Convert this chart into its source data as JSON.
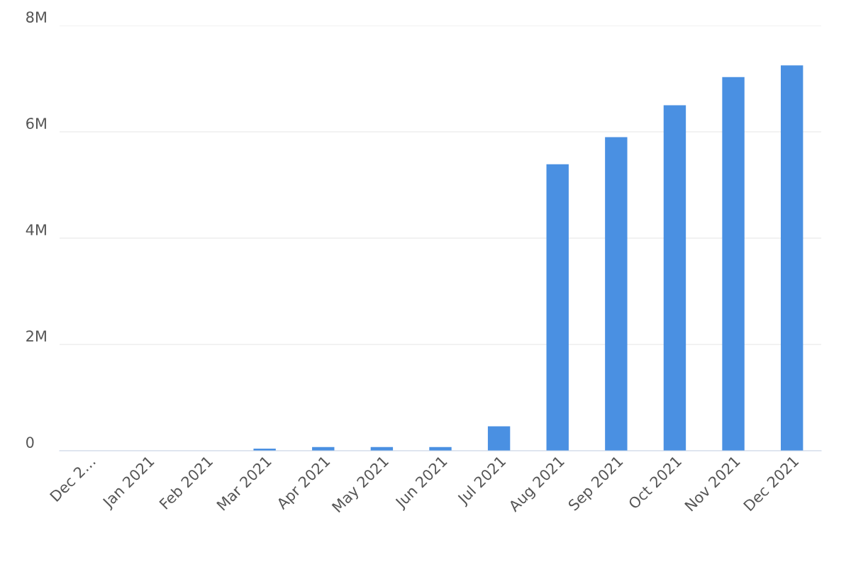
{
  "chart_data": {
    "type": "bar",
    "categories": [
      "Dec 2…",
      "Jan 2021",
      "Feb 2021",
      "Mar 2021",
      "Apr 2021",
      "May 2021",
      "Jun 2021",
      "Jul 2021",
      "Aug 2021",
      "Sep 2021",
      "Oct 2021",
      "Nov 2021",
      "Dec 2021"
    ],
    "values": [
      0,
      0,
      0,
      40000,
      70000,
      70000,
      70000,
      460000,
      5390000,
      5900000,
      6500000,
      7030000,
      7250000
    ],
    "color": "#4a90e2",
    "ylim": [
      0,
      8000000
    ],
    "yticks": [
      {
        "value": 0,
        "label": "0"
      },
      {
        "value": 2000000,
        "label": "2M"
      },
      {
        "value": 4000000,
        "label": "4M"
      },
      {
        "value": 6000000,
        "label": "6M"
      },
      {
        "value": 8000000,
        "label": "8M"
      }
    ],
    "grid": "y"
  }
}
